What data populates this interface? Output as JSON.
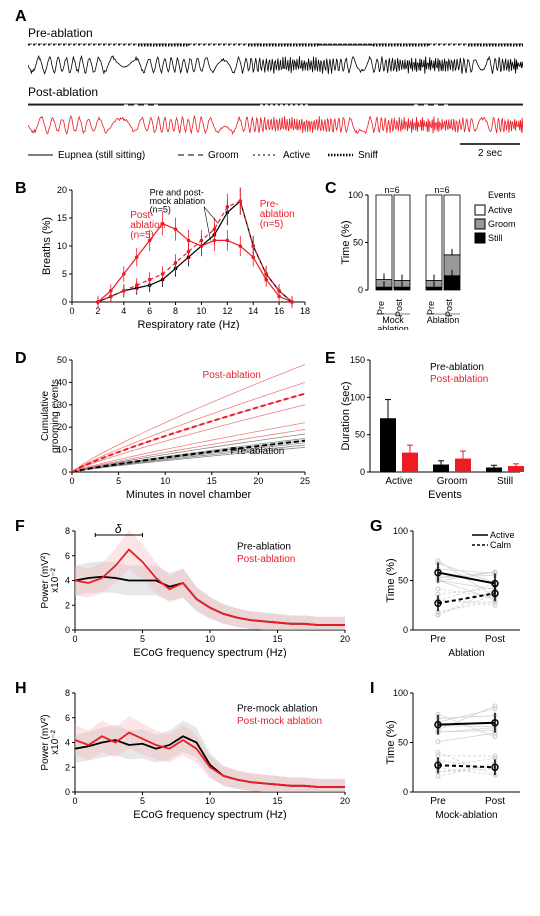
{
  "colors": {
    "black": "#000000",
    "red": "#ed1c24",
    "gray": "#999999",
    "light_gray": "#cccccc",
    "fill_gray": "#d0d0d0",
    "fill_red_light": "#f7b5b8",
    "white": "#ffffff"
  },
  "panelA": {
    "label": "A",
    "pre_title": "Pre-ablation",
    "post_title": "Post-ablation",
    "legend": {
      "eupnea": "Eupnea (still sitting)",
      "groom": "Groom",
      "active": "Active",
      "sniff": "Sniff"
    },
    "scale": "2 sec"
  },
  "panelB": {
    "label": "B",
    "xlabel": "Respiratory rate (Hz)",
    "ylabel": "Breaths (%)",
    "xticks": [
      0,
      2,
      4,
      6,
      8,
      10,
      12,
      14,
      16,
      18
    ],
    "yticks": [
      0,
      5,
      10,
      15,
      20
    ],
    "xlim": [
      0,
      18
    ],
    "ylim": [
      0,
      20
    ],
    "series": {
      "pre_mock": {
        "label": "Pre and post-\nmock ablation\n(n=5)",
        "color": "#000000"
      },
      "pre_abl": {
        "label": "Pre-\nablation\n(n=5)",
        "color": "#ed1c24"
      },
      "post_abl": {
        "label": "Post-\nablation\n(n=5)",
        "color": "#ed1c24"
      }
    },
    "pre_abl_data": {
      "x": [
        2,
        3,
        4,
        5,
        6,
        7,
        8,
        9,
        10,
        11,
        12,
        13,
        14,
        15,
        16,
        17
      ],
      "y": [
        0,
        1,
        2,
        3,
        4,
        5,
        7,
        9,
        11,
        13,
        17,
        18,
        10,
        5,
        2,
        0
      ]
    },
    "post_abl_data": {
      "x": [
        2,
        3,
        4,
        5,
        6,
        7,
        8,
        9,
        10,
        11,
        12,
        13,
        14,
        15,
        16,
        17
      ],
      "y": [
        0,
        2,
        5,
        8,
        11,
        14,
        13,
        11,
        10,
        11,
        11,
        10,
        8,
        4,
        1,
        0
      ]
    },
    "mock_data": {
      "x": [
        2,
        3,
        4,
        5,
        6,
        7,
        8,
        9,
        10,
        11,
        12,
        13,
        14,
        15,
        16,
        17
      ],
      "y": [
        0,
        1,
        2,
        2.5,
        3,
        4,
        6,
        8,
        10,
        12,
        16,
        18,
        10,
        5,
        2,
        0
      ]
    }
  },
  "panelC": {
    "label": "C",
    "ylabel": "Time (%)",
    "yticks": [
      0,
      50,
      100
    ],
    "xlabels_top": [
      "Pre",
      "Post",
      "Pre",
      "Post"
    ],
    "xlabels_bottom": [
      "Mock\nablation",
      "Ablation"
    ],
    "n_label": "n=6",
    "legend": {
      "active": "Active",
      "groom": "Groom",
      "still": "Still",
      "events": "Events"
    },
    "bars": [
      {
        "still": 3,
        "groom": 8,
        "active": 89
      },
      {
        "still": 3,
        "groom": 7,
        "active": 90
      },
      {
        "still": 3,
        "groom": 7,
        "active": 90
      },
      {
        "still": 15,
        "groom": 22,
        "active": 63
      }
    ]
  },
  "panelD": {
    "label": "D",
    "xlabel": "Minutes in novel chamber",
    "ylabel": "Cumulative\ngrooming events",
    "xticks": [
      0,
      5,
      10,
      15,
      20,
      25
    ],
    "yticks": [
      0,
      10,
      20,
      30,
      40,
      50
    ],
    "xlim": [
      0,
      25
    ],
    "ylim": [
      0,
      50
    ],
    "pre_label": "Pre-ablation",
    "post_label": "Post-ablation",
    "pre_lines": [
      [
        0,
        0,
        25,
        13
      ],
      [
        0,
        0,
        25,
        12
      ],
      [
        0,
        0,
        25,
        15
      ],
      [
        0,
        0,
        25,
        11
      ],
      [
        0,
        0,
        25,
        17
      ],
      [
        0,
        0,
        25,
        14
      ]
    ],
    "post_lines": [
      [
        0,
        0,
        25,
        35
      ],
      [
        0,
        0,
        25,
        48
      ],
      [
        0,
        0,
        25,
        30
      ],
      [
        0,
        0,
        25,
        22
      ],
      [
        0,
        0,
        25,
        19
      ],
      [
        0,
        0,
        25,
        40
      ]
    ]
  },
  "panelE": {
    "label": "E",
    "ylabel": "Duration (sec)",
    "yticks": [
      0,
      50,
      100,
      150
    ],
    "categories": [
      "Active",
      "Groom",
      "Still"
    ],
    "xlabel": "Events",
    "pre_label": "Pre-ablation",
    "post_label": "Post-ablation",
    "data": [
      {
        "pre": 72,
        "pre_err": 25,
        "post": 26,
        "post_err": 10
      },
      {
        "pre": 10,
        "pre_err": 5,
        "post": 18,
        "post_err": 10
      },
      {
        "pre": 6,
        "pre_err": 3,
        "post": 8,
        "post_err": 3
      }
    ]
  },
  "panelF": {
    "label": "F",
    "xlabel": "ECoG frequency spectrum (Hz)",
    "ylabel": "Power (mV²)\nx10⁻²",
    "xticks": [
      0,
      5,
      10,
      15,
      20
    ],
    "yticks": [
      0,
      2,
      4,
      6,
      8
    ],
    "delta": "δ",
    "pre_label": "Pre-ablation",
    "post_label": "Post-ablation",
    "pre_data": [
      4,
      4.2,
      4.3,
      4.2,
      4,
      4,
      4,
      3.5,
      3.8,
      2.5,
      1.8,
      1.3,
      1,
      0.8,
      0.7,
      0.6,
      0.5,
      0.5,
      0.4,
      0.4,
      0.4
    ],
    "post_data": [
      4,
      3.8,
      4.2,
      5.2,
      6.5,
      5.5,
      4.2,
      3.3,
      3.8,
      2.5,
      1.8,
      1.3,
      1,
      0.8,
      0.7,
      0.6,
      0.5,
      0.5,
      0.4,
      0.4,
      0.4
    ]
  },
  "panelG": {
    "label": "G",
    "ylabel": "Time (%)",
    "yticks": [
      0,
      50,
      100
    ],
    "xticks": [
      "Pre",
      "Post"
    ],
    "xlabel": "Ablation",
    "active_label": "Active",
    "calm_label": "Calm",
    "active": {
      "pre": 58,
      "post": 47
    },
    "calm": {
      "pre": 27,
      "post": 37
    }
  },
  "panelH": {
    "label": "H",
    "xlabel": "ECoG frequency spectrum (Hz)",
    "ylabel": "Power (mV²)\nx10⁻²",
    "xticks": [
      0,
      5,
      10,
      15,
      20
    ],
    "yticks": [
      0,
      2,
      4,
      6,
      8
    ],
    "pre_label": "Pre-mock ablation",
    "post_label": "Post-mock ablation",
    "pre_data": [
      3.5,
      3.7,
      4,
      4.2,
      3.8,
      3.9,
      3.5,
      3.8,
      4.5,
      4,
      2.2,
      1.3,
      1,
      0.8,
      0.7,
      0.6,
      0.5,
      0.5,
      0.4,
      0.4,
      0.4
    ],
    "post_data": [
      4.2,
      3.8,
      4.5,
      4,
      4.8,
      4.3,
      3.8,
      3.5,
      4.2,
      3.5,
      2,
      1.3,
      1,
      0.8,
      0.7,
      0.6,
      0.5,
      0.5,
      0.4,
      0.4,
      0.4
    ]
  },
  "panelI": {
    "label": "I",
    "ylabel": "Time (%)",
    "yticks": [
      0,
      50,
      100
    ],
    "xticks": [
      "Pre",
      "Post"
    ],
    "xlabel": "Mock-ablation",
    "active": {
      "pre": 68,
      "post": 70
    },
    "calm": {
      "pre": 27,
      "post": 25
    }
  }
}
